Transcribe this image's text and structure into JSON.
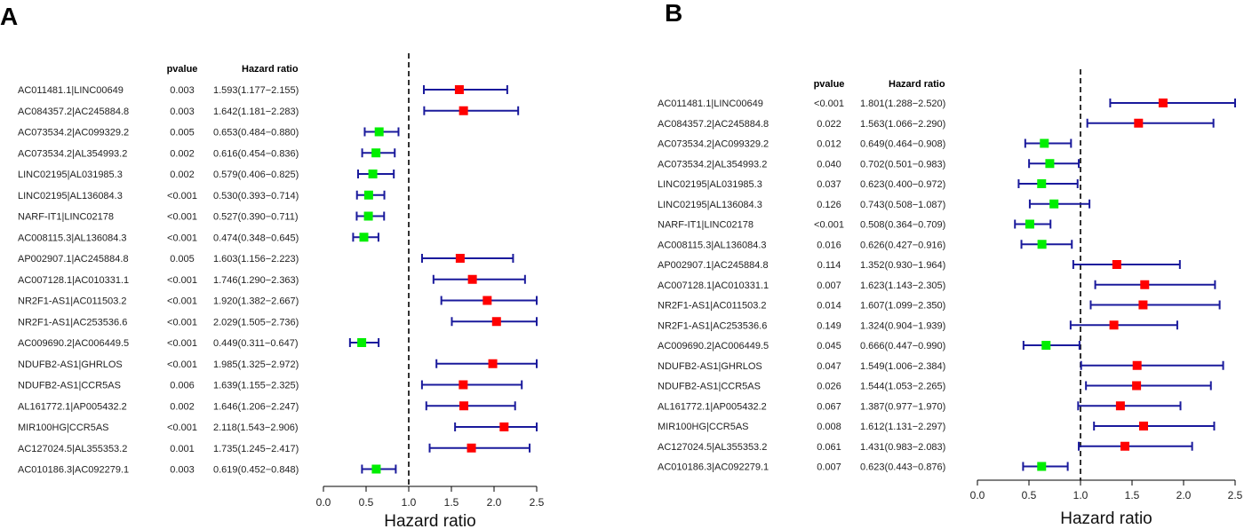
{
  "colors": {
    "ci_line": "#1a1a9c",
    "risk_marker": "#ff0000",
    "protective_marker": "#00ee00",
    "axis": "#000000"
  },
  "chart_data": [
    {
      "type": "forest",
      "panel_label": "A",
      "pvalue_header": "pvalue",
      "hr_header": "Hazard ratio",
      "xlabel": "Hazard ratio",
      "xlim": [
        0,
        2.5
      ],
      "xticks": [
        "0.0",
        "0.5",
        "1.0",
        "1.5",
        "2.0",
        "2.5"
      ],
      "reference_line": 1.0,
      "rows": [
        {
          "name": "AC011481.1|LINC00649",
          "pvalue": "0.003",
          "hr_text": "1.593(1.177−2.155)",
          "hr": 1.593,
          "lo": 1.177,
          "hi": 2.155
        },
        {
          "name": "AC084357.2|AC245884.8",
          "pvalue": "0.003",
          "hr_text": "1.642(1.181−2.283)",
          "hr": 1.642,
          "lo": 1.181,
          "hi": 2.283
        },
        {
          "name": "AC073534.2|AC099329.2",
          "pvalue": "0.005",
          "hr_text": "0.653(0.484−0.880)",
          "hr": 0.653,
          "lo": 0.484,
          "hi": 0.88
        },
        {
          "name": "AC073534.2|AL354993.2",
          "pvalue": "0.002",
          "hr_text": "0.616(0.454−0.836)",
          "hr": 0.616,
          "lo": 0.454,
          "hi": 0.836
        },
        {
          "name": "LINC02195|AL031985.3",
          "pvalue": "0.002",
          "hr_text": "0.579(0.406−0.825)",
          "hr": 0.579,
          "lo": 0.406,
          "hi": 0.825
        },
        {
          "name": "LINC02195|AL136084.3",
          "pvalue": "<0.001",
          "hr_text": "0.530(0.393−0.714)",
          "hr": 0.53,
          "lo": 0.393,
          "hi": 0.714
        },
        {
          "name": "NARF-IT1|LINC02178",
          "pvalue": "<0.001",
          "hr_text": "0.527(0.390−0.711)",
          "hr": 0.527,
          "lo": 0.39,
          "hi": 0.711
        },
        {
          "name": "AC008115.3|AL136084.3",
          "pvalue": "<0.001",
          "hr_text": "0.474(0.348−0.645)",
          "hr": 0.474,
          "lo": 0.348,
          "hi": 0.645
        },
        {
          "name": "AP002907.1|AC245884.8",
          "pvalue": "0.005",
          "hr_text": "1.603(1.156−2.223)",
          "hr": 1.603,
          "lo": 1.156,
          "hi": 2.223
        },
        {
          "name": "AC007128.1|AC010331.1",
          "pvalue": "<0.001",
          "hr_text": "1.746(1.290−2.363)",
          "hr": 1.746,
          "lo": 1.29,
          "hi": 2.363
        },
        {
          "name": "NR2F1-AS1|AC011503.2",
          "pvalue": "<0.001",
          "hr_text": "1.920(1.382−2.667)",
          "hr": 1.92,
          "lo": 1.382,
          "hi": 2.667
        },
        {
          "name": "NR2F1-AS1|AC253536.6",
          "pvalue": "<0.001",
          "hr_text": "2.029(1.505−2.736)",
          "hr": 2.029,
          "lo": 1.505,
          "hi": 2.736
        },
        {
          "name": "AC009690.2|AC006449.5",
          "pvalue": "<0.001",
          "hr_text": "0.449(0.311−0.647)",
          "hr": 0.449,
          "lo": 0.311,
          "hi": 0.647
        },
        {
          "name": "NDUFB2-AS1|GHRLOS",
          "pvalue": "<0.001",
          "hr_text": "1.985(1.325−2.972)",
          "hr": 1.985,
          "lo": 1.325,
          "hi": 2.972
        },
        {
          "name": "NDUFB2-AS1|CCR5AS",
          "pvalue": "0.006",
          "hr_text": "1.639(1.155−2.325)",
          "hr": 1.639,
          "lo": 1.155,
          "hi": 2.325
        },
        {
          "name": "AL161772.1|AP005432.2",
          "pvalue": "0.002",
          "hr_text": "1.646(1.206−2.247)",
          "hr": 1.646,
          "lo": 1.206,
          "hi": 2.247
        },
        {
          "name": "MIR100HG|CCR5AS",
          "pvalue": "<0.001",
          "hr_text": "2.118(1.543−2.906)",
          "hr": 2.118,
          "lo": 1.543,
          "hi": 2.906
        },
        {
          "name": "AC127024.5|AL355353.2",
          "pvalue": "0.001",
          "hr_text": "1.735(1.245−2.417)",
          "hr": 1.735,
          "lo": 1.245,
          "hi": 2.417
        },
        {
          "name": "AC010186.3|AC092279.1",
          "pvalue": "0.003",
          "hr_text": "0.619(0.452−0.848)",
          "hr": 0.619,
          "lo": 0.452,
          "hi": 0.848
        }
      ]
    },
    {
      "type": "forest",
      "panel_label": "B",
      "pvalue_header": "pvalue",
      "hr_header": "Hazard ratio",
      "xlabel": "Hazard ratio",
      "xlim": [
        0,
        2.5
      ],
      "xticks": [
        "0.0",
        "0.5",
        "1.0",
        "1.5",
        "2.0",
        "2.5"
      ],
      "reference_line": 1.0,
      "rows": [
        {
          "name": "AC011481.1|LINC00649",
          "pvalue": "<0.001",
          "hr_text": "1.801(1.288−2.520)",
          "hr": 1.801,
          "lo": 1.288,
          "hi": 2.52
        },
        {
          "name": "AC084357.2|AC245884.8",
          "pvalue": "0.022",
          "hr_text": "1.563(1.066−2.290)",
          "hr": 1.563,
          "lo": 1.066,
          "hi": 2.29
        },
        {
          "name": "AC073534.2|AC099329.2",
          "pvalue": "0.012",
          "hr_text": "0.649(0.464−0.908)",
          "hr": 0.649,
          "lo": 0.464,
          "hi": 0.908
        },
        {
          "name": "AC073534.2|AL354993.2",
          "pvalue": "0.040",
          "hr_text": "0.702(0.501−0.983)",
          "hr": 0.702,
          "lo": 0.501,
          "hi": 0.983
        },
        {
          "name": "LINC02195|AL031985.3",
          "pvalue": "0.037",
          "hr_text": "0.623(0.400−0.972)",
          "hr": 0.623,
          "lo": 0.4,
          "hi": 0.972
        },
        {
          "name": "LINC02195|AL136084.3",
          "pvalue": "0.126",
          "hr_text": "0.743(0.508−1.087)",
          "hr": 0.743,
          "lo": 0.508,
          "hi": 1.087
        },
        {
          "name": "NARF-IT1|LINC02178",
          "pvalue": "<0.001",
          "hr_text": "0.508(0.364−0.709)",
          "hr": 0.508,
          "lo": 0.364,
          "hi": 0.709
        },
        {
          "name": "AC008115.3|AL136084.3",
          "pvalue": "0.016",
          "hr_text": "0.626(0.427−0.916)",
          "hr": 0.626,
          "lo": 0.427,
          "hi": 0.916
        },
        {
          "name": "AP002907.1|AC245884.8",
          "pvalue": "0.114",
          "hr_text": "1.352(0.930−1.964)",
          "hr": 1.352,
          "lo": 0.93,
          "hi": 1.964
        },
        {
          "name": "AC007128.1|AC010331.1",
          "pvalue": "0.007",
          "hr_text": "1.623(1.143−2.305)",
          "hr": 1.623,
          "lo": 1.143,
          "hi": 2.305
        },
        {
          "name": "NR2F1-AS1|AC011503.2",
          "pvalue": "0.014",
          "hr_text": "1.607(1.099−2.350)",
          "hr": 1.607,
          "lo": 1.099,
          "hi": 2.35
        },
        {
          "name": "NR2F1-AS1|AC253536.6",
          "pvalue": "0.149",
          "hr_text": "1.324(0.904−1.939)",
          "hr": 1.324,
          "lo": 0.904,
          "hi": 1.939
        },
        {
          "name": "AC009690.2|AC006449.5",
          "pvalue": "0.045",
          "hr_text": "0.666(0.447−0.990)",
          "hr": 0.666,
          "lo": 0.447,
          "hi": 0.99
        },
        {
          "name": "NDUFB2-AS1|GHRLOS",
          "pvalue": "0.047",
          "hr_text": "1.549(1.006−2.384)",
          "hr": 1.549,
          "lo": 1.006,
          "hi": 2.384
        },
        {
          "name": "NDUFB2-AS1|CCR5AS",
          "pvalue": "0.026",
          "hr_text": "1.544(1.053−2.265)",
          "hr": 1.544,
          "lo": 1.053,
          "hi": 2.265
        },
        {
          "name": "AL161772.1|AP005432.2",
          "pvalue": "0.067",
          "hr_text": "1.387(0.977−1.970)",
          "hr": 1.387,
          "lo": 0.977,
          "hi": 1.97
        },
        {
          "name": "MIR100HG|CCR5AS",
          "pvalue": "0.008",
          "hr_text": "1.612(1.131−2.297)",
          "hr": 1.612,
          "lo": 1.131,
          "hi": 2.297
        },
        {
          "name": "AC127024.5|AL355353.2",
          "pvalue": "0.061",
          "hr_text": "1.431(0.983−2.083)",
          "hr": 1.431,
          "lo": 0.983,
          "hi": 2.083
        },
        {
          "name": "AC010186.3|AC092279.1",
          "pvalue": "0.007",
          "hr_text": "0.623(0.443−0.876)",
          "hr": 0.623,
          "lo": 0.443,
          "hi": 0.876
        }
      ]
    }
  ]
}
